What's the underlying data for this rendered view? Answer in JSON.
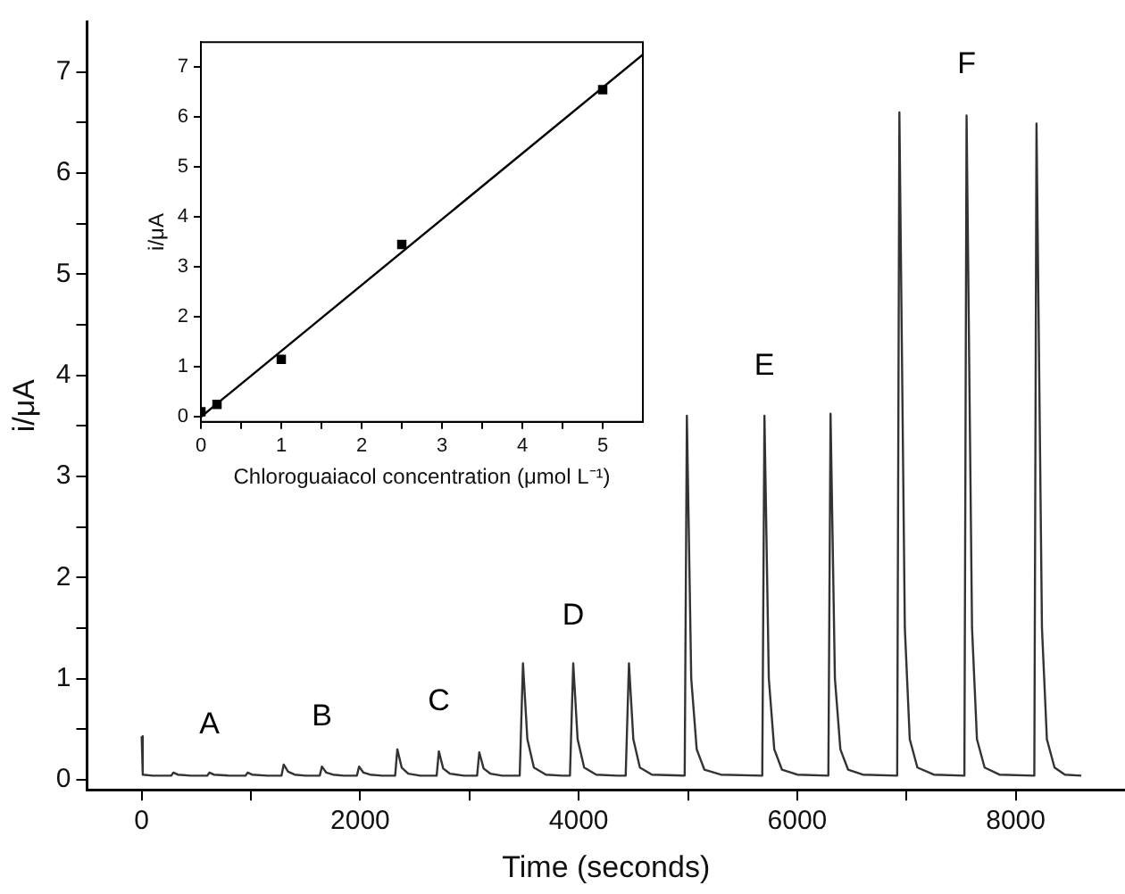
{
  "chart_data": [
    {
      "type": "line",
      "xlabel": "Time (seconds)",
      "ylabel": "i/μA",
      "color": "#333333",
      "xlim": [
        -500,
        9000
      ],
      "ylim": [
        -0.1,
        7.5
      ],
      "xticks": [
        0,
        {
          "value": 1000,
          "label": null
        },
        2000,
        {
          "value": 3000,
          "label": null
        },
        4000,
        {
          "value": 5000,
          "label": null
        },
        6000,
        {
          "value": 7000,
          "label": null
        },
        8000
      ],
      "yticks": [
        0,
        {
          "value": 0.5,
          "label": null
        },
        1,
        {
          "value": 1.5,
          "label": null
        },
        2,
        {
          "value": 2.5,
          "label": null
        },
        3,
        {
          "value": 3.5,
          "label": null
        },
        4,
        {
          "value": 4.5,
          "label": null
        },
        5,
        {
          "value": 5.5,
          "label": null
        },
        6,
        {
          "value": 6.5,
          "label": null
        },
        7
      ],
      "x": [
        0,
        10,
        100,
        270,
        290,
        330,
        450,
        600,
        620,
        660,
        800,
        950,
        970,
        1010,
        1150,
        1280,
        1300,
        1340,
        1400,
        1500,
        1630,
        1650,
        1690,
        1750,
        1850,
        1970,
        1990,
        2030,
        2090,
        2200,
        2320,
        2340,
        2380,
        2440,
        2550,
        2700,
        2720,
        2760,
        2820,
        2950,
        3070,
        3090,
        3130,
        3190,
        3300,
        3460,
        3490,
        3530,
        3590,
        3700,
        3850,
        3920,
        3950,
        3990,
        4050,
        4160,
        4350,
        4430,
        4460,
        4500,
        4560,
        4670,
        4970,
        4990,
        5030,
        5080,
        5150,
        5300,
        5680,
        5700,
        5740,
        5790,
        5860,
        6000,
        6285,
        6305,
        6345,
        6395,
        6465,
        6600,
        6915,
        6935,
        6985,
        7030,
        7100,
        7250,
        7530,
        7550,
        7600,
        7645,
        7715,
        7850,
        8170,
        8190,
        8240,
        8285,
        8355,
        8450,
        8600
      ],
      "values": [
        0.43,
        0.05,
        0.04,
        0.04,
        0.07,
        0.05,
        0.04,
        0.04,
        0.07,
        0.05,
        0.04,
        0.04,
        0.07,
        0.05,
        0.04,
        0.04,
        0.15,
        0.08,
        0.05,
        0.04,
        0.04,
        0.13,
        0.07,
        0.05,
        0.04,
        0.04,
        0.13,
        0.07,
        0.05,
        0.04,
        0.04,
        0.3,
        0.12,
        0.06,
        0.04,
        0.04,
        0.28,
        0.11,
        0.06,
        0.04,
        0.04,
        0.27,
        0.11,
        0.06,
        0.04,
        0.04,
        1.15,
        0.4,
        0.12,
        0.05,
        0.04,
        0.04,
        1.15,
        0.4,
        0.12,
        0.05,
        0.04,
        0.04,
        1.15,
        0.4,
        0.12,
        0.05,
        0.04,
        3.6,
        1.0,
        0.3,
        0.1,
        0.05,
        0.04,
        3.6,
        1.0,
        0.3,
        0.1,
        0.05,
        0.04,
        3.62,
        1.0,
        0.3,
        0.1,
        0.05,
        0.04,
        6.6,
        1.5,
        0.4,
        0.12,
        0.05,
        0.04,
        6.57,
        1.5,
        0.4,
        0.12,
        0.05,
        0.04,
        6.49,
        1.5,
        0.4,
        0.12,
        0.05,
        0.04
      ],
      "annotations": [
        "A",
        "B",
        "C",
        "D",
        "E",
        "F"
      ]
    },
    {
      "type": "scatter",
      "xlabel": "Chloroguaiacol concentration (μmol L⁻¹)",
      "ylabel": "i/μA",
      "xlim": [
        0,
        5.5
      ],
      "ylim": [
        -0.1,
        7.5
      ],
      "xticks": [
        0,
        {
          "value": 0.5,
          "label": null
        },
        1,
        {
          "value": 1.5,
          "label": null
        },
        2,
        {
          "value": 2.5,
          "label": null
        },
        3,
        {
          "value": 3.5,
          "label": null
        },
        4,
        {
          "value": 4.5,
          "label": null
        },
        5
      ],
      "yticks": [
        0,
        1,
        2,
        3,
        4,
        5,
        6,
        7
      ],
      "series": [
        {
          "type": "scatter",
          "marker": "square",
          "color": "#000000",
          "x": [
            0,
            0.2,
            1,
            2.5,
            5
          ],
          "values": [
            0.1,
            0.25,
            1.15,
            3.45,
            6.55
          ]
        },
        {
          "type": "line",
          "color": "#000000",
          "x": [
            0,
            5.5
          ],
          "values": [
            0,
            7.25
          ]
        }
      ]
    }
  ]
}
